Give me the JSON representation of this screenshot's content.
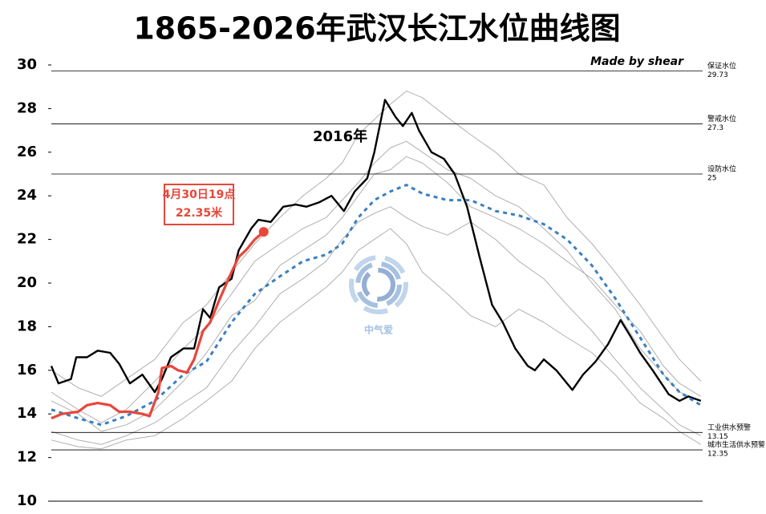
{
  "chart_data": {
    "type": "line",
    "title": "1865-2026年武汉长江水位曲线图",
    "credit": "Made by shear",
    "watermark": "中气爱",
    "xlim": [
      1,
      366
    ],
    "ylim": [
      10,
      30
    ],
    "yticks": [
      10,
      12,
      14,
      16,
      18,
      20,
      22,
      24,
      26,
      28,
      30
    ],
    "reference_lines": [
      {
        "label": "保证水位",
        "value": 29.73
      },
      {
        "label": "警戒水位",
        "value": 27.3
      },
      {
        "label": "设防水位",
        "value": 25
      },
      {
        "label": "工业供水预警",
        "value": 13.15
      },
      {
        "label": "城市生活供水预警",
        "value": 12.35
      }
    ],
    "annotations": [
      {
        "text": "2016年"
      },
      {
        "text": "4月30日19点",
        "text2": "22.35米"
      }
    ],
    "series": [
      {
        "color": "#b0b0b0",
        "x": [
          1,
          16,
          29,
          43,
          59,
          75,
          88,
          102,
          115,
          129,
          142,
          155,
          164,
          173,
          182,
          191,
          200,
          209,
          223,
          236,
          250,
          263,
          277,
          290,
          304,
          317,
          331,
          344,
          353,
          365
        ],
        "values": [
          15.0,
          14.2,
          13.6,
          14.2,
          15.5,
          17.0,
          18.0,
          19.5,
          21.0,
          21.8,
          22.5,
          23.0,
          23.8,
          24.6,
          25.5,
          26.2,
          26.5,
          26.0,
          25.2,
          24.8,
          24.0,
          23.5,
          22.5,
          21.5,
          20.0,
          18.8,
          17.0,
          15.8,
          15.0,
          14.6
        ]
      },
      {
        "color": "#b0b0b0",
        "x": [
          1,
          16,
          29,
          43,
          59,
          75,
          88,
          102,
          115,
          129,
          142,
          155,
          164,
          173,
          182,
          191,
          200,
          209,
          223,
          236,
          250,
          263,
          277,
          290,
          304,
          317,
          331,
          344,
          353,
          365
        ],
        "values": [
          13.2,
          12.8,
          12.6,
          13.0,
          13.6,
          14.5,
          15.2,
          16.8,
          18.0,
          19.5,
          20.2,
          21.0,
          22.0,
          22.8,
          23.2,
          23.5,
          23.0,
          22.6,
          22.2,
          22.8,
          22.0,
          21.0,
          20.2,
          19.0,
          17.8,
          16.5,
          15.2,
          14.2,
          13.5,
          13.0
        ]
      },
      {
        "color": "#b0b0b0",
        "x": [
          1,
          16,
          29,
          43,
          59,
          75,
          88,
          102,
          115,
          129,
          142,
          155,
          164,
          173,
          182,
          191,
          200,
          209,
          223,
          236,
          250,
          263,
          277,
          290,
          304,
          317,
          331,
          344,
          353,
          365
        ],
        "values": [
          16.0,
          15.2,
          14.8,
          15.6,
          16.5,
          18.2,
          19.0,
          20.5,
          21.8,
          23.0,
          24.0,
          24.8,
          25.5,
          26.8,
          27.5,
          28.2,
          28.8,
          28.5,
          27.6,
          26.8,
          26.0,
          25.0,
          24.5,
          23.0,
          21.8,
          20.5,
          19.0,
          17.5,
          16.5,
          15.5
        ]
      },
      {
        "color": "#b0b0b0",
        "x": [
          1,
          16,
          29,
          43,
          59,
          75,
          88,
          102,
          115,
          129,
          142,
          155,
          164,
          173,
          182,
          191,
          200,
          209,
          223,
          236,
          250,
          263,
          277,
          290,
          304,
          317,
          331,
          344,
          353,
          365
        ],
        "values": [
          12.8,
          12.5,
          12.4,
          12.8,
          13.0,
          13.8,
          14.6,
          15.5,
          17.0,
          18.2,
          19.0,
          19.8,
          20.5,
          21.5,
          22.0,
          22.5,
          21.8,
          20.5,
          19.5,
          18.5,
          18.0,
          18.8,
          18.2,
          17.5,
          16.8,
          15.8,
          14.5,
          13.8,
          13.2,
          12.6
        ]
      },
      {
        "color": "#b0b0b0",
        "x": [
          1,
          16,
          29,
          43,
          59,
          75,
          88,
          102,
          115,
          129,
          142,
          155,
          164,
          173,
          182,
          191,
          200,
          209,
          223,
          236,
          250,
          263,
          277,
          290,
          304,
          317,
          331,
          344,
          353,
          365
        ],
        "values": [
          14.6,
          14.0,
          13.2,
          13.5,
          14.2,
          15.5,
          16.8,
          18.5,
          19.2,
          20.8,
          21.5,
          22.2,
          23.0,
          24.0,
          25.0,
          25.2,
          25.8,
          25.5,
          24.6,
          23.5,
          23.0,
          22.5,
          21.8,
          21.0,
          20.2,
          19.0,
          17.8,
          16.2,
          15.4,
          14.8
        ]
      },
      {
        "color": "#000000",
        "width": 2.4,
        "x": [
          1,
          5,
          12,
          15,
          21,
          27,
          34,
          39,
          45,
          52,
          59,
          63,
          68,
          75,
          81,
          86,
          90,
          95,
          102,
          106,
          113,
          117,
          124,
          131,
          138,
          144,
          151,
          158,
          165,
          171,
          178,
          182,
          188,
          194,
          198,
          203,
          207,
          214,
          221,
          227,
          234,
          241,
          248,
          254,
          261,
          268,
          272,
          277,
          284,
          293,
          299,
          306,
          313,
          320,
          326,
          331,
          338,
          347,
          353,
          358,
          365
        ],
        "values": [
          16.2,
          15.4,
          15.6,
          16.6,
          16.6,
          16.9,
          16.8,
          16.3,
          15.4,
          15.8,
          15.0,
          15.6,
          16.6,
          17.0,
          17.0,
          18.8,
          18.4,
          19.8,
          20.2,
          21.5,
          22.5,
          22.9,
          22.8,
          23.5,
          23.6,
          23.5,
          23.7,
          24.0,
          23.3,
          24.2,
          24.8,
          26.0,
          28.4,
          27.6,
          27.2,
          27.8,
          27.0,
          26.0,
          25.7,
          25.0,
          23.5,
          21.2,
          19.0,
          18.2,
          17.0,
          16.2,
          16.0,
          16.5,
          16.0,
          15.1,
          15.8,
          16.4,
          17.2,
          18.3,
          17.5,
          16.8,
          16.0,
          14.9,
          14.6,
          14.8,
          14.6
        ]
      },
      {
        "color": "#3a7fc0",
        "width": 3,
        "dash": true,
        "x": [
          1,
          16,
          29,
          43,
          59,
          75,
          88,
          102,
          115,
          129,
          142,
          155,
          164,
          173,
          182,
          191,
          200,
          209,
          223,
          236,
          250,
          263,
          277,
          290,
          304,
          317,
          331,
          344,
          353,
          365
        ],
        "values": [
          14.2,
          13.8,
          13.5,
          13.9,
          14.6,
          15.8,
          16.4,
          18.2,
          19.5,
          20.3,
          21.0,
          21.3,
          21.8,
          23.0,
          23.8,
          24.2,
          24.5,
          24.1,
          23.8,
          23.8,
          23.3,
          23.1,
          22.7,
          22.0,
          20.8,
          19.3,
          17.5,
          15.8,
          15.0,
          14.4
        ]
      },
      {
        "color": "#e8463a",
        "width": 3.2,
        "endpoint": true,
        "x": [
          1,
          7,
          16,
          21,
          27,
          34,
          39,
          45,
          52,
          56,
          61,
          63,
          68,
          72,
          77,
          81,
          86,
          90,
          95,
          102,
          106,
          110,
          115,
          120
        ],
        "values": [
          13.8,
          14.0,
          14.1,
          14.4,
          14.5,
          14.4,
          14.1,
          14.1,
          14.0,
          13.9,
          15.0,
          16.1,
          16.2,
          16.0,
          15.9,
          16.5,
          17.8,
          18.2,
          19.2,
          20.5,
          21.2,
          21.5,
          22.0,
          22.35
        ]
      }
    ]
  }
}
